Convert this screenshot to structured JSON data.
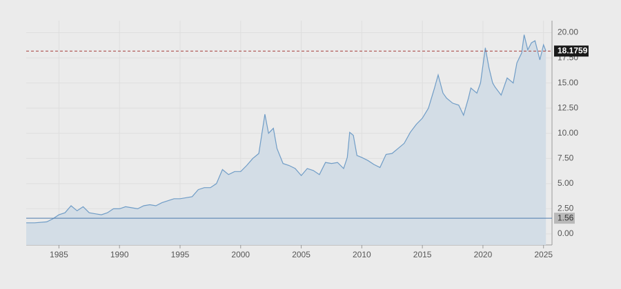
{
  "chart_data": {
    "type": "area",
    "x": [
      1982.3,
      1983,
      1984,
      1984.5,
      1985,
      1985.5,
      1986,
      1986.5,
      1987,
      1987.5,
      1988,
      1988.5,
      1989,
      1989.5,
      1990,
      1990.5,
      1991,
      1991.5,
      1992,
      1992.5,
      1993,
      1993.5,
      1994,
      1994.5,
      1995,
      1995.5,
      1996,
      1996.5,
      1997,
      1997.5,
      1998,
      1998.5,
      1999,
      1999.5,
      2000,
      2000.5,
      2001,
      2001.5,
      2002,
      2002.3,
      2002.7,
      2003,
      2003.5,
      2004,
      2004.5,
      2005,
      2005.5,
      2006,
      2006.5,
      2007,
      2007.5,
      2008,
      2008.5,
      2008.8,
      2009,
      2009.3,
      2009.6,
      2010,
      2010.5,
      2011,
      2011.5,
      2012,
      2012.5,
      2013,
      2013.5,
      2014,
      2014.5,
      2015,
      2015.5,
      2016,
      2016.3,
      2016.7,
      2017,
      2017.5,
      2018,
      2018.4,
      2018.8,
      2019,
      2019.5,
      2019.8,
      2020.2,
      2020.5,
      2020.8,
      2021,
      2021.5,
      2022,
      2022.5,
      2022.8,
      2023.2,
      2023.4,
      2023.7,
      2024,
      2024.3,
      2024.7,
      2025,
      2025.2
    ],
    "values": [
      1.1,
      1.1,
      1.2,
      1.5,
      1.9,
      2.1,
      2.8,
      2.3,
      2.7,
      2.1,
      2.0,
      1.9,
      2.1,
      2.5,
      2.5,
      2.7,
      2.6,
      2.5,
      2.8,
      2.9,
      2.8,
      3.1,
      3.3,
      3.5,
      3.5,
      3.6,
      3.7,
      4.4,
      4.6,
      4.6,
      5.0,
      6.4,
      5.9,
      6.2,
      6.2,
      6.8,
      7.5,
      8.0,
      11.9,
      10.0,
      10.5,
      8.5,
      7.0,
      6.8,
      6.5,
      5.8,
      6.5,
      6.3,
      5.9,
      7.1,
      7.0,
      7.1,
      6.5,
      7.6,
      10.1,
      9.8,
      7.8,
      7.6,
      7.3,
      6.9,
      6.6,
      7.9,
      8.0,
      8.5,
      9.0,
      10.1,
      10.9,
      11.5,
      12.5,
      14.5,
      15.8,
      14.0,
      13.5,
      13.0,
      12.8,
      11.8,
      13.5,
      14.5,
      14.0,
      15.0,
      18.5,
      16.5,
      15.0,
      14.6,
      13.8,
      15.5,
      15.0,
      17.0,
      18.0,
      19.8,
      18.3,
      19.0,
      19.2,
      17.3,
      18.8,
      18.1759
    ],
    "color": "#6f9cc6",
    "fill": "#d3dde6",
    "xlim": [
      1982.3,
      2025.7
    ],
    "xticks": [
      1985,
      1990,
      1995,
      2000,
      2005,
      2010,
      2015,
      2020,
      2025
    ],
    "ylim": [
      -1.1,
      21.2
    ],
    "yticks": [
      {
        "value": 0,
        "label": "0.00"
      },
      {
        "value": 2.5,
        "label": "2.50"
      },
      {
        "value": 5,
        "label": "5.00"
      },
      {
        "value": 7.5,
        "label": "7.50"
      },
      {
        "value": 10,
        "label": "10.00"
      },
      {
        "value": 12.5,
        "label": "12.50"
      },
      {
        "value": 15,
        "label": "15.00"
      },
      {
        "value": 17.5,
        "label": "17.50"
      },
      {
        "value": 20,
        "label": "20.00"
      }
    ],
    "grid": true,
    "reference_lines": [
      {
        "value": 18.1759,
        "color": "#a33a36",
        "style": "dashed"
      },
      {
        "value": 1.56,
        "color": "#4a78ab",
        "style": "solid"
      }
    ]
  }
}
